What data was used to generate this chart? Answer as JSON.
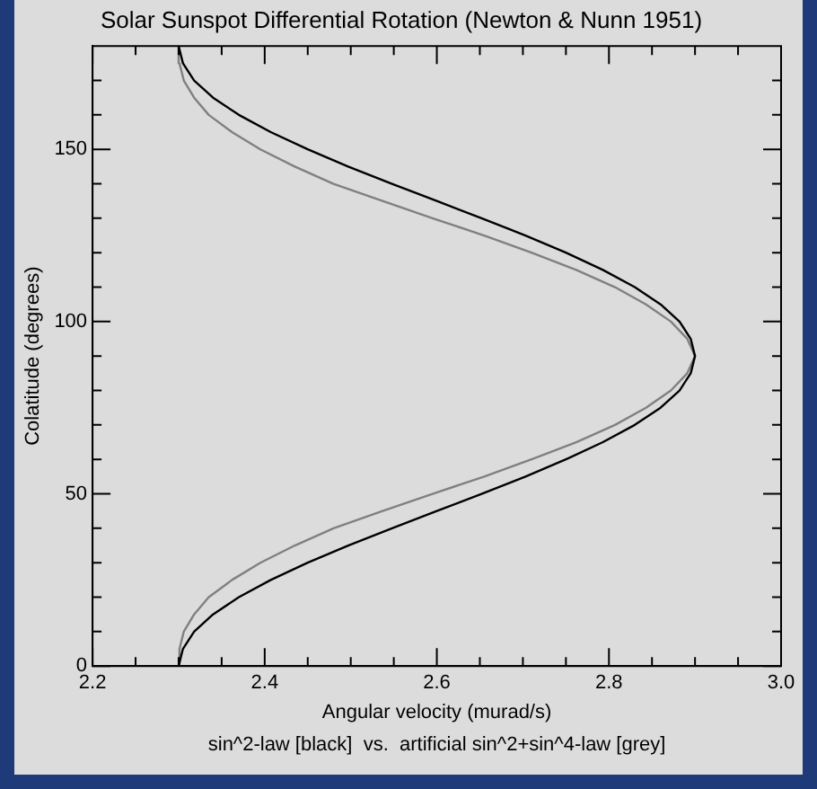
{
  "chart_data": {
    "type": "line",
    "title": "Solar Sunspot Differential Rotation (Newton & Nunn 1951)",
    "xlabel": "Angular velocity (murad/s)",
    "ylabel": "Colatitude (degrees)",
    "annotations": [
      "sin^2-law [black]  vs.  artificial sin^2+sin^4-law [grey]"
    ],
    "xlim": [
      2.2,
      3.0
    ],
    "xticks": [
      {
        "value": 2.2,
        "label": "2.2"
      },
      {
        "value": 2.25,
        "label": null
      },
      {
        "value": 2.3,
        "label": null
      },
      {
        "value": 2.35,
        "label": null
      },
      {
        "value": 2.4,
        "label": "2.4"
      },
      {
        "value": 2.45,
        "label": null
      },
      {
        "value": 2.5,
        "label": null
      },
      {
        "value": 2.55,
        "label": null
      },
      {
        "value": 2.6,
        "label": "2.6"
      },
      {
        "value": 2.65,
        "label": null
      },
      {
        "value": 2.7,
        "label": null
      },
      {
        "value": 2.75,
        "label": null
      },
      {
        "value": 2.8,
        "label": "2.8"
      },
      {
        "value": 2.85,
        "label": null
      },
      {
        "value": 2.9,
        "label": null
      },
      {
        "value": 2.95,
        "label": null
      },
      {
        "value": 3.0,
        "label": "3.0"
      }
    ],
    "ylim": [
      0,
      180
    ],
    "yticks": [
      0,
      {
        "value": 10,
        "label": null
      },
      {
        "value": 20,
        "label": null
      },
      {
        "value": 30,
        "label": null
      },
      {
        "value": 40,
        "label": null
      },
      50,
      {
        "value": 60,
        "label": null
      },
      {
        "value": 70,
        "label": null
      },
      {
        "value": 80,
        "label": null
      },
      {
        "value": 90,
        "label": null
      },
      100,
      {
        "value": 110,
        "label": null
      },
      {
        "value": 120,
        "label": null
      },
      {
        "value": 130,
        "label": null
      },
      {
        "value": 140,
        "label": null
      },
      150,
      {
        "value": 160,
        "label": null
      },
      {
        "value": 170,
        "label": null
      }
    ],
    "series": [
      {
        "color": "#000000",
        "x": [
          2.3,
          2.305,
          2.318,
          2.34,
          2.37,
          2.407,
          2.45,
          2.497,
          2.548,
          2.6,
          2.652,
          2.703,
          2.75,
          2.793,
          2.83,
          2.86,
          2.882,
          2.895,
          2.9,
          2.895,
          2.882,
          2.86,
          2.83,
          2.793,
          2.75,
          2.703,
          2.652,
          2.6,
          2.548,
          2.497,
          2.45,
          2.407,
          2.37,
          2.34,
          2.318,
          2.305,
          2.3
        ],
        "values": [
          0,
          5,
          10,
          15,
          20,
          25,
          30,
          35,
          40,
          45,
          50,
          55,
          60,
          65,
          70,
          75,
          80,
          85,
          90,
          95,
          100,
          105,
          110,
          115,
          120,
          125,
          130,
          135,
          140,
          145,
          150,
          155,
          160,
          165,
          170,
          175,
          180
        ]
      },
      {
        "color": "#808080",
        "x": [
          2.3,
          2.301,
          2.306,
          2.318,
          2.335,
          2.362,
          2.395,
          2.435,
          2.48,
          2.537,
          2.595,
          2.655,
          2.71,
          2.762,
          2.807,
          2.843,
          2.872,
          2.891,
          2.9,
          2.891,
          2.872,
          2.843,
          2.807,
          2.762,
          2.71,
          2.655,
          2.595,
          2.537,
          2.48,
          2.435,
          2.395,
          2.362,
          2.335,
          2.318,
          2.306,
          2.301,
          2.3
        ],
        "values": [
          0,
          5,
          10,
          15,
          20,
          25,
          30,
          35,
          40,
          45,
          50,
          55,
          60,
          65,
          70,
          75,
          80,
          85,
          90,
          95,
          100,
          105,
          110,
          115,
          120,
          125,
          130,
          135,
          140,
          145,
          150,
          155,
          160,
          165,
          170,
          175,
          180
        ]
      }
    ]
  }
}
